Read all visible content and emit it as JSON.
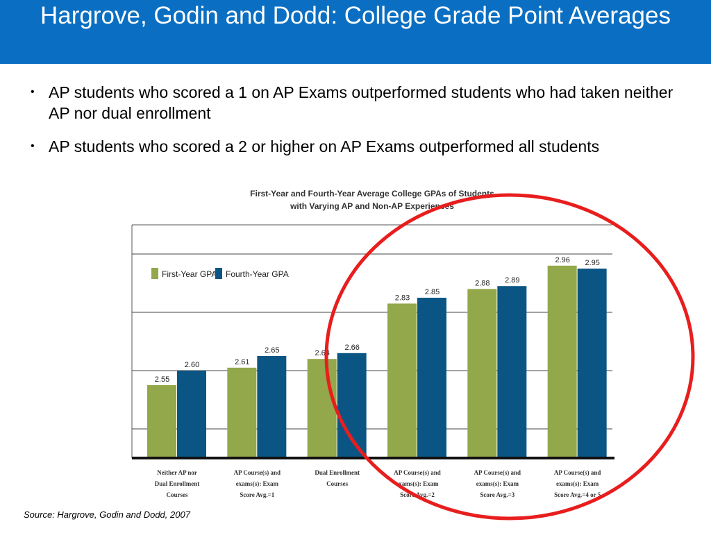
{
  "slide": {
    "title": "Hargrove, Godin and Dodd: College Grade Point Averages",
    "bullets": [
      "AP students who scored a 1 on AP Exams outperformed students who had taken neither AP nor dual enrollment",
      "AP students who scored a 2 or higher on AP Exams outperformed all students"
    ],
    "source": "Source: Hargrove, Godin and Dodd, 2007"
  },
  "colors": {
    "title_bar": "#0a6fc2",
    "first_year": "#93a84a",
    "fourth_year": "#0b5585",
    "circle": "#e81e1e"
  },
  "chart_data": {
    "type": "bar",
    "title_lines": [
      "First-Year and Fourth-Year Average College GPAs of Students",
      "with Varying AP and Non-AP Experiences"
    ],
    "categories": [
      [
        "Neither AP nor",
        "Dual Enrollment",
        "Courses"
      ],
      [
        "AP Course(s) and",
        "exams(s): Exam",
        "Score Avg.=1"
      ],
      [
        "Dual Enrollment",
        "Courses"
      ],
      [
        "AP Course(s) and",
        "exams(s): Exam",
        "Score Avg.=2"
      ],
      [
        "AP Course(s) and",
        "exams(s): Exam",
        "Score Avg.=3"
      ],
      [
        "AP Course(s) and",
        "exams(s): Exam",
        "Score Avg.=4 or 5"
      ]
    ],
    "series": [
      {
        "name": "First-Year GPA",
        "values": [
          2.55,
          2.61,
          2.64,
          2.83,
          2.88,
          2.96
        ],
        "labels": [
          "2.55",
          "2.61",
          "2.64",
          "2.83",
          "2.88",
          "2.96"
        ]
      },
      {
        "name": "Fourth-Year GPA",
        "values": [
          2.6,
          2.65,
          2.66,
          2.85,
          2.89,
          2.95
        ],
        "labels": [
          "2.60",
          "2.65",
          "2.66",
          "2.85",
          "2.89",
          "2.95"
        ]
      }
    ],
    "ylim": [
      2.3,
      3.1
    ],
    "grid": true,
    "legend": "top-left",
    "highlight": "ellipse around AP Score Avg.=2, 3 and 4 or 5 groups"
  }
}
